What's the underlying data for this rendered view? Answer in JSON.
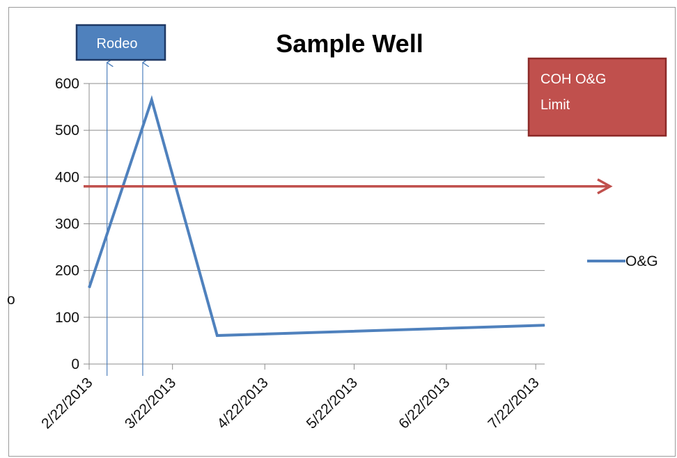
{
  "chart_data": {
    "type": "line",
    "title": "Sample Well",
    "ylabel": "o",
    "xlabel": "",
    "ylim": [
      0,
      600
    ],
    "yticks": [
      0,
      100,
      200,
      300,
      400,
      500,
      600
    ],
    "xlim": [
      "2013-02-22",
      "2013-07-25"
    ],
    "xticks": [
      "2/22/2013",
      "3/22/2013",
      "4/22/2013",
      "5/22/2013",
      "6/22/2013",
      "7/22/2013"
    ],
    "grid": "horizontal",
    "legend_position": "right",
    "series": [
      {
        "name": "O&G",
        "color": "#4f81bd",
        "x": [
          "2013-02-22",
          "2013-03-15",
          "2013-04-06",
          "2013-07-25"
        ],
        "values": [
          163,
          565,
          61,
          83
        ]
      }
    ],
    "annotations": [
      {
        "text": "Rodeo",
        "arrow_dates": [
          "2013-02-28",
          "2013-03-12"
        ],
        "fill": "#4f81bd",
        "border": "#1f3864"
      },
      {
        "text_lines": [
          "COH O&G",
          "Limit"
        ],
        "value": 380,
        "color": "#c0504d",
        "border": "#8c2a28"
      }
    ]
  }
}
